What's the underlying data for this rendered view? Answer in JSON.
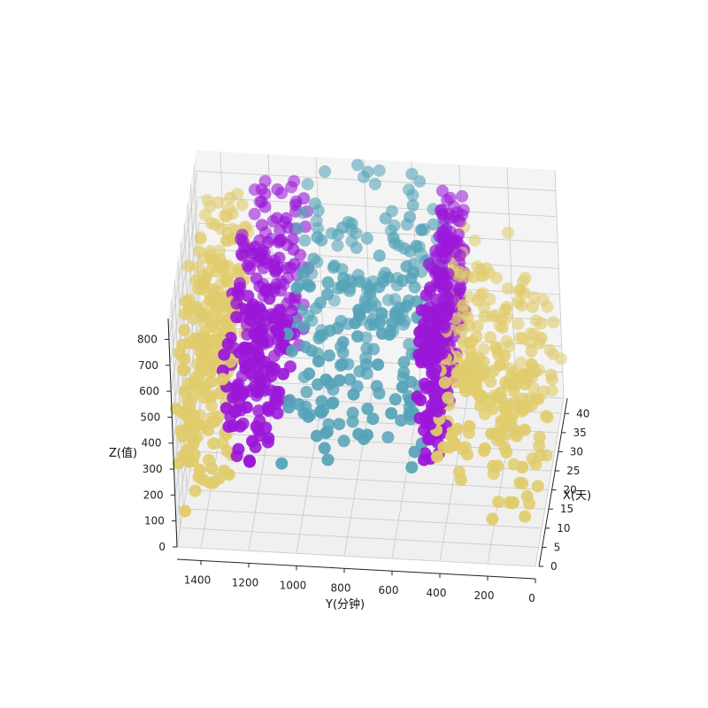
{
  "chart_data": {
    "type": "scatter",
    "projection": "3d",
    "title": "",
    "xlabel": "X(天)",
    "ylabel": "Y(分钟)",
    "zlabel": "Z(值)",
    "xlim": [
      0,
      44
    ],
    "ylim": [
      0,
      1500
    ],
    "zlim": [
      0,
      880
    ],
    "x_ticks": [
      0,
      5,
      10,
      15,
      20,
      25,
      30,
      35,
      40
    ],
    "y_ticks": [
      1400,
      1200,
      1000,
      800,
      600,
      400,
      200,
      0
    ],
    "z_ticks": [
      0,
      100,
      200,
      300,
      400,
      500,
      600,
      700,
      800
    ],
    "grid": true,
    "colors": {
      "yellow": "#e0cc6c",
      "purple": "#9b17d8",
      "teal": "#55a3b8",
      "pane": "#f4f4f4",
      "grid": "#c8c8c8"
    },
    "series": [
      {
        "color": "#e0cc6c",
        "regions": [
          {
            "y_range": [
              0,
              420
            ],
            "z_profile": [
              [
                0,
                120,
                560
              ],
              [
                210,
                100,
                660
              ],
              [
                420,
                380,
                680
              ]
            ]
          },
          {
            "y_range": [
              1280,
              1500
            ],
            "z_profile": [
              [
                1280,
                240,
                880
              ],
              [
                1390,
                150,
                820
              ],
              [
                1500,
                80,
                720
              ]
            ]
          }
        ]
      },
      {
        "color": "#9b17d8",
        "regions": [
          {
            "y_range": [
              380,
              470
            ],
            "z_profile": [
              [
                380,
                380,
                760
              ],
              [
                425,
                360,
                830
              ],
              [
                470,
                340,
                870
              ]
            ]
          },
          {
            "y_range": [
              1030,
              1290
            ],
            "z_profile": [
              [
                1030,
                310,
                860
              ],
              [
                1160,
                280,
                840
              ],
              [
                1290,
                250,
                800
              ]
            ]
          }
        ]
      },
      {
        "color": "#55a3b8",
        "regions": [
          {
            "y_range": [
              450,
              1050
            ],
            "z_profile": [
              [
                450,
                260,
                910
              ],
              [
                750,
                310,
                920
              ],
              [
                1050,
                280,
                900
              ]
            ]
          }
        ]
      }
    ]
  }
}
